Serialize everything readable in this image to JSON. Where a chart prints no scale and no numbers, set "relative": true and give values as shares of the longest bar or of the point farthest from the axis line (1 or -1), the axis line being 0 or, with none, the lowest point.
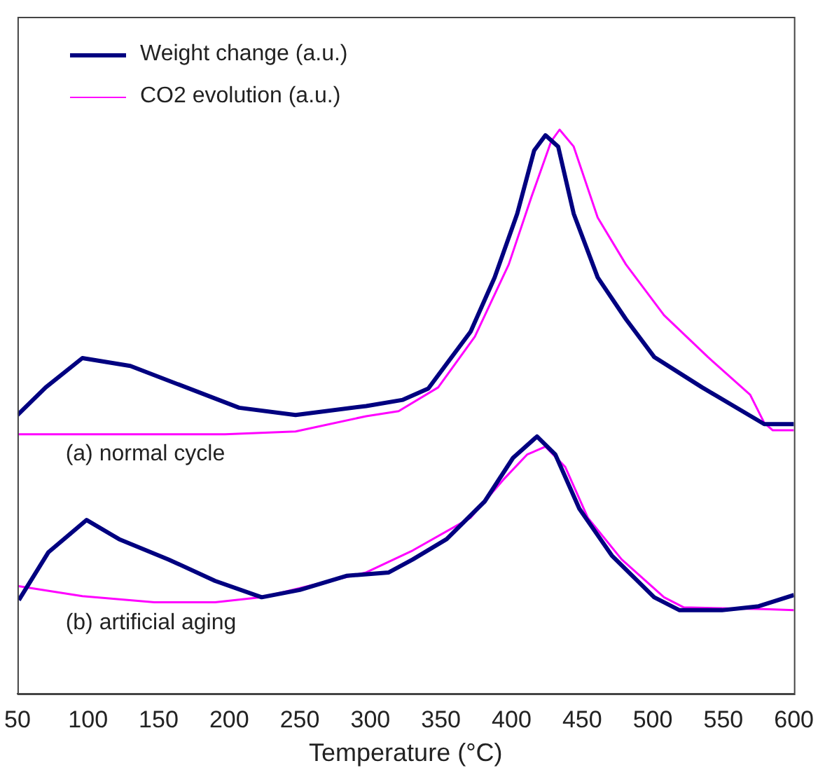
{
  "chart_data": {
    "type": "line",
    "relative": true,
    "xlabel": "Temperature (°C)",
    "xlim": [
      50,
      600
    ],
    "xticks": [
      50,
      100,
      150,
      200,
      250,
      300,
      350,
      400,
      450,
      500,
      550,
      600
    ],
    "tick_labels": "x",
    "grid": false,
    "legend": "top left",
    "marker": "none",
    "line_style": "solid",
    "annotations": [
      "(a) normal cycle",
      "(b) artificial aging"
    ],
    "series": [
      {
        "name": "Weight change (a.u.)",
        "color": "#000080",
        "x": [
          50,
          70,
          96,
          130,
          207,
          247,
          297,
          323,
          341,
          371,
          388,
          404,
          416,
          424,
          433,
          444,
          461,
          481,
          501,
          535,
          579,
          600
        ],
        "values": [
          0.494,
          0.543,
          0.595,
          0.581,
          0.507,
          0.494,
          0.51,
          0.521,
          0.541,
          0.642,
          0.738,
          0.851,
          0.963,
          0.99,
          0.97,
          0.851,
          0.738,
          0.664,
          0.597,
          0.543,
          0.478,
          0.478
        ]
      },
      {
        "name": "CO2 evolution (a.u.)",
        "color": "#ff00ff",
        "x": [
          50,
          197,
          247,
          297,
          320,
          348,
          374,
          398,
          414,
          428,
          434,
          444,
          461,
          481,
          508,
          539,
          569,
          579,
          585,
          600
        ],
        "values": [
          0.46,
          0.46,
          0.465,
          0.492,
          0.501,
          0.543,
          0.633,
          0.761,
          0.88,
          0.979,
          1,
          0.97,
          0.844,
          0.761,
          0.671,
          0.597,
          0.53,
          0.48,
          0.467,
          0.467
        ]
      },
      {
        "color": "#000080",
        "x": [
          51,
          72,
          99,
          122,
          157,
          190,
          223,
          250,
          283,
          313,
          330,
          354,
          381,
          401,
          418,
          431,
          448,
          471,
          501,
          519,
          549,
          575,
          600
        ],
        "values": [
          0.166,
          0.251,
          0.308,
          0.274,
          0.238,
          0.2,
          0.171,
          0.184,
          0.209,
          0.215,
          0.238,
          0.274,
          0.341,
          0.418,
          0.456,
          0.424,
          0.328,
          0.245,
          0.171,
          0.148,
          0.148,
          0.155,
          0.175
        ]
      },
      {
        "color": "#ff00ff",
        "x": [
          50,
          96,
          147,
          190,
          223,
          263,
          297,
          330,
          371,
          394,
          411,
          424,
          438,
          454,
          478,
          508,
          522,
          579,
          600
        ],
        "values": [
          0.191,
          0.173,
          0.162,
          0.162,
          0.171,
          0.195,
          0.215,
          0.254,
          0.312,
          0.379,
          0.424,
          0.438,
          0.402,
          0.312,
          0.238,
          0.171,
          0.153,
          0.15,
          0.148
        ]
      }
    ]
  }
}
